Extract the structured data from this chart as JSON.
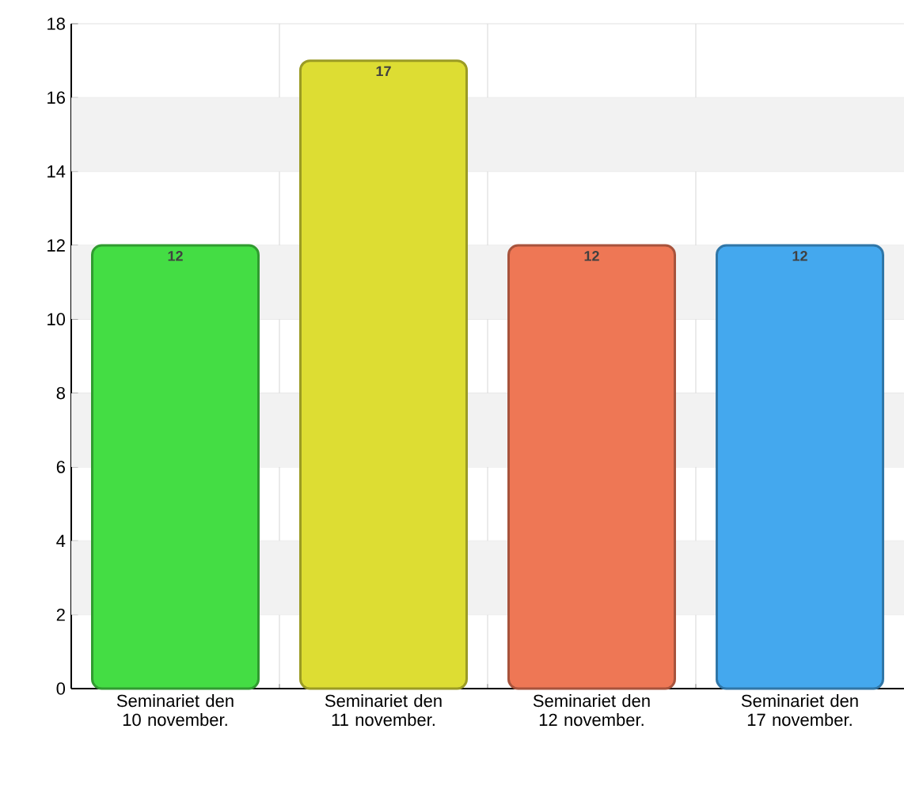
{
  "chart_data": {
    "type": "bar",
    "categories": [
      "Seminariet den 10 november.",
      "Seminariet den 11 november.",
      "Seminariet den 12 november.",
      "Seminariet den 17 november."
    ],
    "values": [
      12,
      17,
      12,
      12
    ],
    "colors": [
      "#44dd44",
      "#dddd33",
      "#ee7755",
      "#44a8ee"
    ],
    "ylim": [
      0,
      18
    ],
    "yticks": [
      0,
      2,
      4,
      6,
      8,
      10,
      12,
      14,
      16,
      18
    ],
    "grid": "y",
    "data_labels": true
  }
}
